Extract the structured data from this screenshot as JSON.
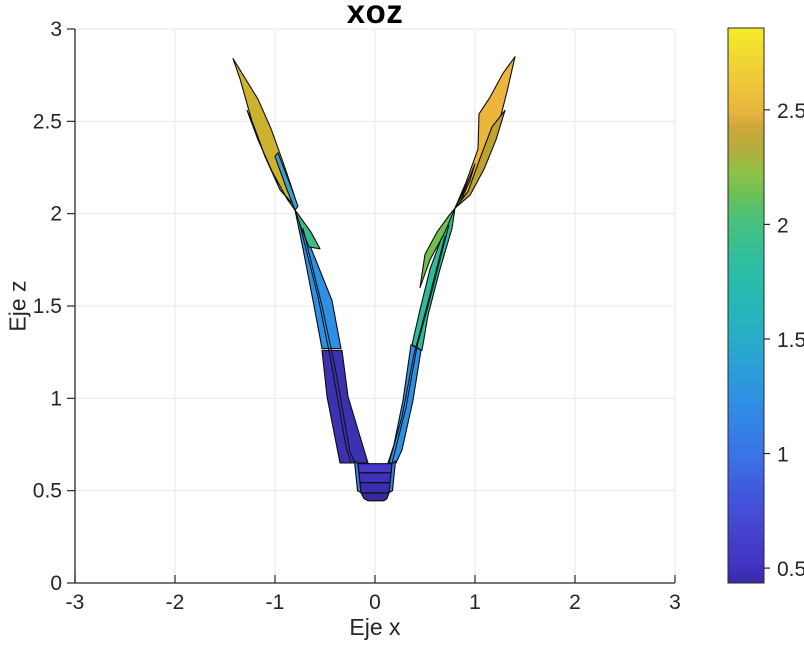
{
  "figure": {
    "title": "xoz",
    "xlabel": "Eje x",
    "ylabel": "Eje z"
  },
  "chart_data": {
    "type": "surface-projection",
    "view": "xoz side view (view(0,0)) of a 3D funnel-shaped surface, MATLAB-style",
    "title": "xoz",
    "xlabel": "Eje x",
    "ylabel": "Eje z",
    "xlim": [
      -3,
      3
    ],
    "zlim": [
      0,
      3
    ],
    "grid": true,
    "x_tick_values": [
      -3,
      -2,
      -1,
      0,
      1,
      2,
      3
    ],
    "x_tick_labels": [
      "-3",
      "-2",
      "-1",
      "0",
      "1",
      "2",
      "3"
    ],
    "z_tick_values": [
      0,
      0.5,
      1,
      1.5,
      2,
      2.5,
      3
    ],
    "z_tick_labels": [
      "0",
      "0.5",
      "1",
      "1.5",
      "2",
      "2.5",
      "3"
    ],
    "colors": {
      "axis": "#262626",
      "grid": "#e7e7e7",
      "text": "#262626",
      "edge": "#0d0d0d",
      "background": "#ffffff"
    },
    "colorbar": {
      "colormap": "parula",
      "min": 0.435,
      "max": 2.857,
      "tick_values": [
        0.5,
        1,
        1.5,
        2,
        2.5
      ],
      "tick_labels": [
        "0.5",
        "1",
        "1.5",
        "2",
        "2.5"
      ],
      "gradient_stops": [
        [
          0.0,
          "#3a2ba8"
        ],
        [
          0.03,
          "#4132c2"
        ],
        [
          0.1,
          "#4546d0"
        ],
        [
          0.17,
          "#405bdd"
        ],
        [
          0.235,
          "#3a75e6"
        ],
        [
          0.32,
          "#2f8ee4"
        ],
        [
          0.4,
          "#2aa2d4"
        ],
        [
          0.44,
          "#28adc6"
        ],
        [
          0.5,
          "#26b7b7"
        ],
        [
          0.57,
          "#2cbda4"
        ],
        [
          0.62,
          "#3bc08c"
        ],
        [
          0.66,
          "#4ec177"
        ],
        [
          0.7,
          "#6cc055"
        ],
        [
          0.74,
          "#8ec248"
        ],
        [
          0.78,
          "#b2af3c"
        ],
        [
          0.82,
          "#cda73a"
        ],
        [
          0.853,
          "#eab63e"
        ],
        [
          0.91,
          "#eecb39"
        ],
        [
          0.96,
          "#f2dd2e"
        ],
        [
          1.0,
          "#f5ec27"
        ]
      ]
    },
    "surface": {
      "z_range": [
        0.445,
        2.85
      ],
      "x_extent": [
        -1.42,
        1.4
      ],
      "patches": [
        {
          "name": "left-arm-indigo-strip",
          "fill": "#3c31ae",
          "points": [
            [
              -0.53,
              1.26
            ],
            [
              -0.33,
              1.26
            ],
            [
              -0.27,
              1.01
            ],
            [
              -0.07,
              0.65
            ],
            [
              -0.35,
              0.65
            ],
            [
              -0.48,
              1.01
            ]
          ]
        },
        {
          "name": "left-arm-lightblue-strip",
          "fill": "#2f8fe2",
          "points": [
            [
              -0.8,
              2.02
            ],
            [
              -0.63,
              1.8
            ],
            [
              -0.43,
              1.53
            ],
            [
              -0.34,
              1.27
            ],
            [
              -0.53,
              1.27
            ],
            [
              -0.62,
              1.53
            ],
            [
              -0.72,
              1.81
            ]
          ]
        },
        {
          "name": "left-arm-emerald-patch",
          "fill": "#3bbc82",
          "points": [
            [
              -0.8,
              2.02
            ],
            [
              -0.64,
              1.9
            ],
            [
              -0.55,
              1.81
            ],
            [
              -0.66,
              1.82
            ],
            [
              -0.75,
              1.94
            ]
          ]
        },
        {
          "name": "right-arm-teal-strip",
          "fill": "#2cbc9c",
          "points": [
            [
              0.8,
              2.03
            ],
            [
              0.77,
              1.92
            ],
            [
              0.65,
              1.7
            ],
            [
              0.53,
              1.45
            ],
            [
              0.47,
              1.26
            ],
            [
              0.37,
              1.29
            ],
            [
              0.45,
              1.48
            ],
            [
              0.55,
              1.7
            ],
            [
              0.68,
              1.89
            ]
          ]
        },
        {
          "name": "right-arm-yellowgreen-patch",
          "fill": "#6fc04c",
          "points": [
            [
              0.8,
              2.03
            ],
            [
              0.7,
              1.9
            ],
            [
              0.55,
              1.75
            ],
            [
              0.45,
              1.6
            ],
            [
              0.5,
              1.78
            ],
            [
              0.62,
              1.9
            ],
            [
              0.74,
              1.99
            ]
          ]
        },
        {
          "name": "right-arm-blue-strip",
          "fill": "#2f8fe2",
          "points": [
            [
              0.46,
              1.26
            ],
            [
              0.38,
              0.99
            ],
            [
              0.27,
              0.72
            ],
            [
              0.21,
              0.65
            ],
            [
              0.13,
              0.65
            ],
            [
              0.19,
              0.75
            ],
            [
              0.28,
              0.99
            ],
            [
              0.36,
              1.29
            ]
          ]
        },
        {
          "name": "cup-left-blue-sliver",
          "fill": "#3e7ee8",
          "points": [
            [
              -0.205,
              0.66
            ],
            [
              -0.17,
              0.646
            ],
            [
              -0.14,
              0.49
            ],
            [
              -0.175,
              0.5
            ]
          ]
        },
        {
          "name": "cup-right-blue-sliver",
          "fill": "#3e7ee8",
          "points": [
            [
              0.17,
              0.646
            ],
            [
              0.205,
              0.66
            ],
            [
              0.175,
              0.5
            ],
            [
              0.14,
              0.49
            ]
          ]
        },
        {
          "name": "cup-band-1",
          "fill": "#4537c8",
          "points": [
            [
              -0.17,
              0.646
            ],
            [
              0.17,
              0.646
            ],
            [
              0.16,
              0.597
            ],
            [
              -0.16,
              0.597
            ]
          ]
        },
        {
          "name": "cup-band-2",
          "fill": "#3f32ba",
          "points": [
            [
              -0.16,
              0.597
            ],
            [
              0.16,
              0.597
            ],
            [
              0.15,
              0.543
            ],
            [
              -0.15,
              0.543
            ]
          ]
        },
        {
          "name": "cup-band-3",
          "fill": "#3b2db0",
          "points": [
            [
              -0.15,
              0.543
            ],
            [
              0.15,
              0.543
            ],
            [
              0.14,
              0.488
            ],
            [
              -0.14,
              0.488
            ]
          ]
        },
        {
          "name": "cup-band-4",
          "fill": "#3729a0",
          "points": [
            [
              -0.14,
              0.488
            ],
            [
              0.14,
              0.488
            ],
            [
              0.12,
              0.457
            ],
            [
              0.09,
              0.445
            ],
            [
              -0.07,
              0.445
            ],
            [
              -0.11,
              0.457
            ]
          ]
        },
        {
          "name": "left-blade-gold",
          "fill": "#ccb22f",
          "points": [
            [
              -1.42,
              2.84
            ],
            [
              -1.17,
              2.62
            ],
            [
              -1.04,
              2.46
            ],
            [
              -0.92,
              2.28
            ],
            [
              -0.82,
              2.12
            ],
            [
              -0.78,
              2.05
            ],
            [
              -0.82,
              2.05
            ],
            [
              -0.95,
              2.13
            ],
            [
              -1.1,
              2.31
            ],
            [
              -1.23,
              2.5
            ],
            [
              -1.35,
              2.73
            ]
          ]
        },
        {
          "name": "left-blade-green",
          "fill": "#85c247",
          "points": [
            [
              -1.28,
              2.56
            ],
            [
              -1.23,
              2.5
            ],
            [
              -1.1,
              2.31
            ],
            [
              -0.95,
              2.13
            ],
            [
              -0.82,
              2.05
            ],
            [
              -0.8,
              2.02
            ],
            [
              -0.88,
              2.08
            ],
            [
              -1.03,
              2.23
            ],
            [
              -1.17,
              2.4
            ]
          ]
        },
        {
          "name": "left-blade-cyan-sliver",
          "fill": "#35a3d0",
          "points": [
            [
              -0.97,
              2.33
            ],
            [
              -0.83,
              2.13
            ],
            [
              -0.77,
              2.04
            ],
            [
              -0.8,
              2.02
            ],
            [
              -0.88,
              2.13
            ],
            [
              -1.0,
              2.31
            ]
          ]
        },
        {
          "name": "right-blade-gold",
          "fill": "#ecb53c",
          "points": [
            [
              1.4,
              2.85
            ],
            [
              1.32,
              2.66
            ],
            [
              1.23,
              2.47
            ],
            [
              1.11,
              2.28
            ],
            [
              0.97,
              2.12
            ],
            [
              0.8,
              2.03
            ],
            [
              0.91,
              2.17
            ],
            [
              1.03,
              2.35
            ],
            [
              1.04,
              2.54
            ],
            [
              1.15,
              2.63
            ],
            [
              1.28,
              2.76
            ]
          ]
        },
        {
          "name": "right-blade-olive",
          "fill": "#bda42f",
          "points": [
            [
              1.3,
              2.56
            ],
            [
              1.21,
              2.4
            ],
            [
              1.09,
              2.24
            ],
            [
              0.95,
              2.1
            ],
            [
              0.8,
              2.03
            ],
            [
              0.93,
              2.12
            ],
            [
              1.05,
              2.3
            ],
            [
              1.17,
              2.47
            ]
          ]
        },
        {
          "name": "right-blade-green-sliver",
          "fill": "#7cc143",
          "points": [
            [
              1.0,
              2.27
            ],
            [
              0.88,
              2.11
            ],
            [
              0.8,
              2.03
            ],
            [
              0.85,
              2.06
            ],
            [
              0.95,
              2.18
            ]
          ]
        },
        {
          "name": "right-blade-teal-sliver",
          "fill": "#30b8ab",
          "points": [
            [
              0.94,
              2.19
            ],
            [
              0.83,
              2.06
            ],
            [
              0.8,
              2.03
            ],
            [
              0.88,
              2.12
            ]
          ]
        }
      ],
      "mesh_lines": [
        [
          [
            -0.76,
            1.96
          ],
          [
            -0.57,
            1.55
          ],
          [
            -0.44,
            1.2
          ],
          [
            -0.29,
            0.74
          ],
          [
            -0.24,
            0.65
          ]
        ],
        [
          [
            -0.72,
            1.92
          ],
          [
            -0.53,
            1.5
          ],
          [
            -0.4,
            1.17
          ],
          [
            -0.25,
            0.71
          ],
          [
            -0.2,
            0.65
          ]
        ],
        [
          [
            0.74,
            1.94
          ],
          [
            0.56,
            1.56
          ],
          [
            0.42,
            1.28
          ],
          [
            0.31,
            0.95
          ],
          [
            0.17,
            0.65
          ]
        ],
        [
          [
            0.7,
            1.88
          ],
          [
            0.52,
            1.5
          ],
          [
            0.39,
            1.24
          ],
          [
            0.27,
            0.9
          ],
          [
            0.14,
            0.65
          ]
        ]
      ]
    }
  }
}
